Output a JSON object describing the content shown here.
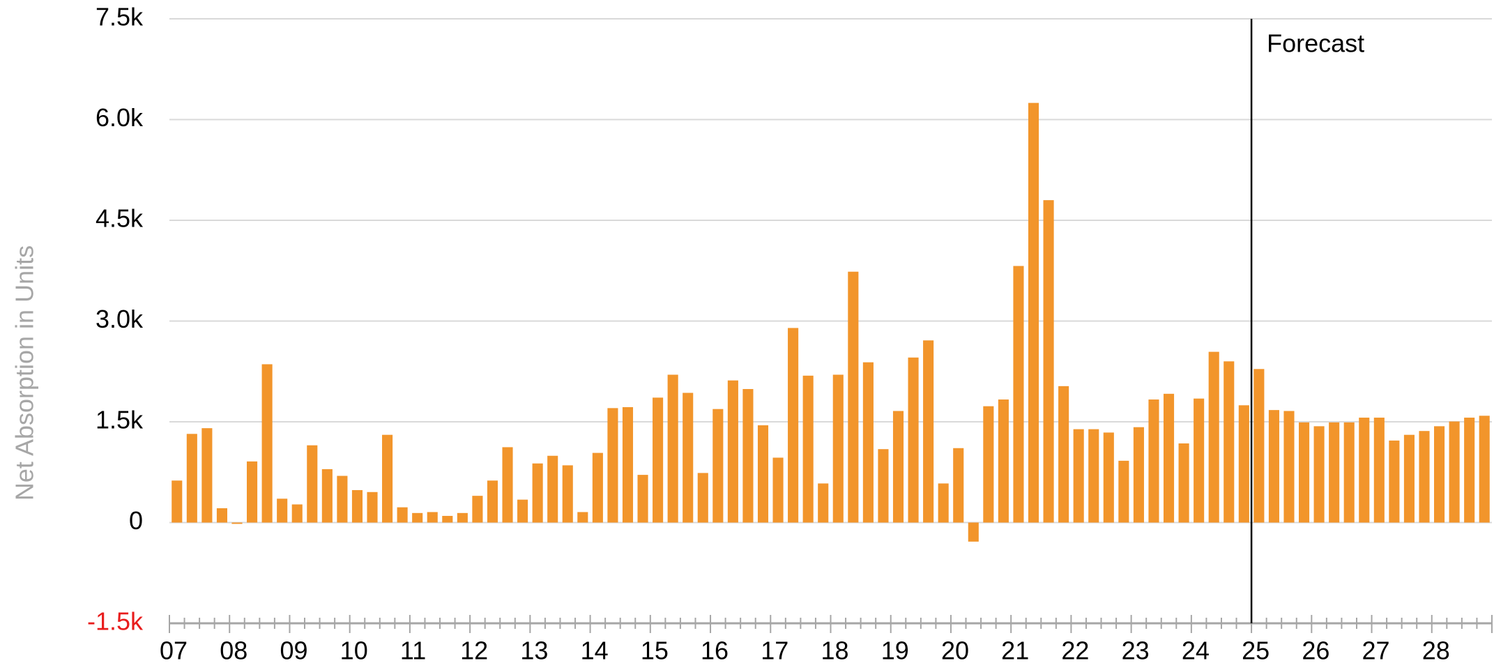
{
  "chart_data": {
    "type": "bar",
    "y_label": "Net Absorption in Units",
    "color": "#f2952b",
    "categories": [
      "07",
      null,
      null,
      null,
      "08",
      null,
      null,
      null,
      "09",
      null,
      null,
      null,
      "10",
      null,
      null,
      null,
      "11",
      null,
      null,
      null,
      "12",
      null,
      null,
      null,
      "13",
      null,
      null,
      null,
      "14",
      null,
      null,
      null,
      "15",
      null,
      null,
      null,
      "16",
      null,
      null,
      null,
      "17",
      null,
      null,
      null,
      "18",
      null,
      null,
      null,
      "19",
      null,
      null,
      null,
      "20",
      null,
      null,
      null,
      "21",
      null,
      null,
      null,
      "22",
      null,
      null,
      null,
      "23",
      null,
      null,
      null,
      "24",
      null,
      null,
      null,
      "25",
      null,
      null,
      null,
      "26",
      null,
      null,
      null,
      "27",
      null,
      null,
      null,
      "28",
      null,
      null,
      null
    ],
    "values": [
      625,
      1320,
      1405,
      213,
      -20,
      910,
      2357,
      355,
      270,
      1150,
      795,
      695,
      483,
      454,
      1306,
      227,
      142,
      156,
      99,
      142,
      398,
      625,
      1122,
      341,
      880,
      994,
      852,
      156,
      1037,
      1704,
      1718,
      710,
      1860,
      2201,
      1931,
      738,
      1690,
      2116,
      1988,
      1448,
      966,
      2897,
      2187,
      582,
      2201,
      3735,
      2386,
      1093,
      1661,
      2457,
      2712,
      582,
      1108,
      -284,
      1732,
      1832,
      3820,
      6248,
      4800,
      2031,
      1390,
      1390,
      1340,
      920,
      1420,
      1832,
      1917,
      1178,
      1846,
      2542,
      2400,
      1746,
      2286,
      1675,
      1661,
      1491,
      1434,
      1491,
      1491,
      1562,
      1562,
      1221,
      1306,
      1363,
      1434,
      1505,
      1562,
      1590
    ],
    "ylim": [
      -1500,
      7500
    ],
    "yticks": [
      {
        "value": -1500,
        "label": "-1.5k",
        "color": "#e81c1c"
      },
      0,
      {
        "value": 1500,
        "label": "1.5k"
      },
      {
        "value": 3000,
        "label": "3.0k"
      },
      {
        "value": 4500,
        "label": "4.5k"
      },
      {
        "value": 6000,
        "label": "6.0k"
      },
      {
        "value": 7500,
        "label": "7.5k"
      }
    ],
    "grid": true,
    "annotations": [
      {
        "text": "Forecast",
        "category_index": 71
      }
    ]
  }
}
